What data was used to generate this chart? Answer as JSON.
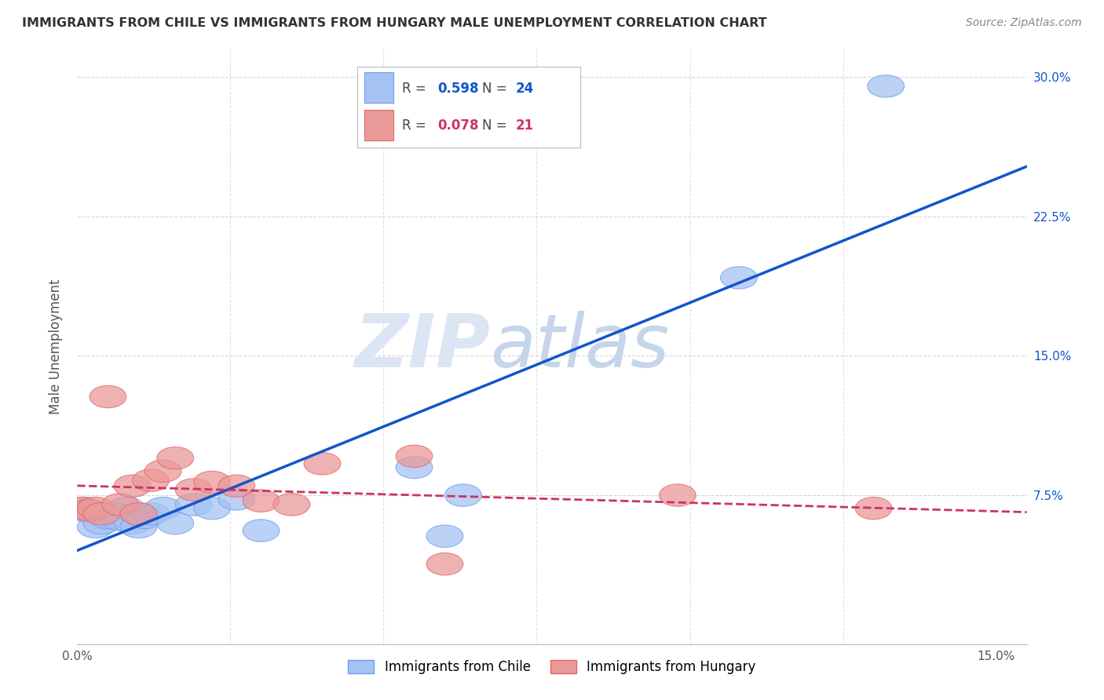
{
  "title": "IMMIGRANTS FROM CHILE VS IMMIGRANTS FROM HUNGARY MALE UNEMPLOYMENT CORRELATION CHART",
  "source": "Source: ZipAtlas.com",
  "ylabel": "Male Unemployment",
  "xlim": [
    0.0,
    0.155
  ],
  "ylim": [
    -0.005,
    0.315
  ],
  "x_ticks": [
    0.0,
    0.025,
    0.05,
    0.075,
    0.1,
    0.125,
    0.15
  ],
  "y_ticks": [
    0.0,
    0.075,
    0.15,
    0.225,
    0.3
  ],
  "y_tick_labels_right": [
    "7.5%",
    "15.0%",
    "22.5%",
    "30.0%"
  ],
  "chile_color": "#a4c2f4",
  "hungary_color": "#ea9999",
  "chile_edge_color": "#6d9eeb",
  "hungary_edge_color": "#e06666",
  "chile_line_color": "#1155cc",
  "hungary_line_color": "#cc3366",
  "chile_R": 0.598,
  "chile_N": 24,
  "hungary_R": 0.078,
  "hungary_N": 21,
  "chile_x": [
    0.001,
    0.002,
    0.003,
    0.003,
    0.004,
    0.005,
    0.006,
    0.007,
    0.008,
    0.009,
    0.01,
    0.011,
    0.012,
    0.014,
    0.016,
    0.019,
    0.022,
    0.026,
    0.03,
    0.055,
    0.06,
    0.063,
    0.108,
    0.132
  ],
  "chile_y": [
    0.068,
    0.066,
    0.065,
    0.058,
    0.06,
    0.063,
    0.065,
    0.062,
    0.068,
    0.06,
    0.058,
    0.063,
    0.065,
    0.068,
    0.06,
    0.07,
    0.068,
    0.073,
    0.056,
    0.09,
    0.053,
    0.075,
    0.192,
    0.295
  ],
  "hungary_x": [
    0.001,
    0.002,
    0.003,
    0.004,
    0.005,
    0.007,
    0.009,
    0.01,
    0.012,
    0.014,
    0.016,
    0.019,
    0.022,
    0.026,
    0.03,
    0.035,
    0.04,
    0.055,
    0.06,
    0.098,
    0.13
  ],
  "hungary_y": [
    0.068,
    0.067,
    0.068,
    0.065,
    0.128,
    0.07,
    0.08,
    0.065,
    0.083,
    0.088,
    0.095,
    0.078,
    0.082,
    0.08,
    0.072,
    0.07,
    0.092,
    0.096,
    0.038,
    0.075,
    0.068
  ],
  "background_color": "#ffffff",
  "grid_color": "#cccccc",
  "watermark_zip_color": "#dce5f3",
  "watermark_atlas_color": "#dce5f3"
}
